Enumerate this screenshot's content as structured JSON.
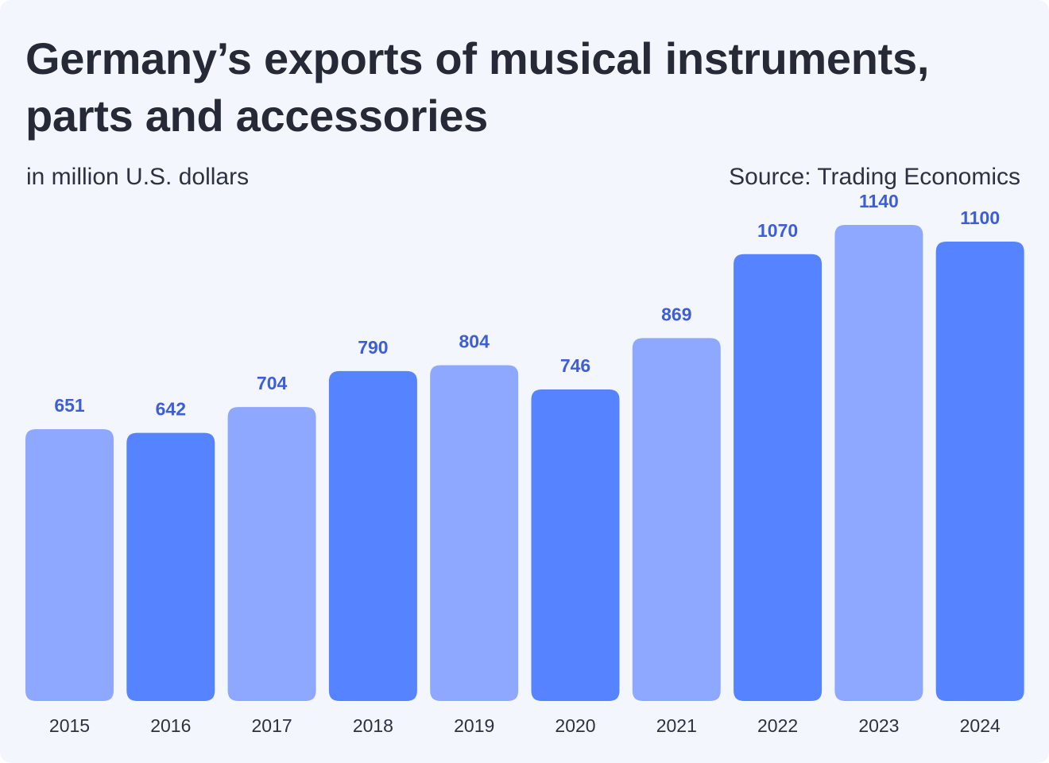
{
  "header": {
    "title": "Germany’s exports of musical instruments, parts and accessories",
    "subtitle": "in million U.S. dollars",
    "source": "Source: Trading Economics"
  },
  "colors": {
    "bar_light": "#8fa8ff",
    "bar_dark": "#5683ff",
    "value_label": "#3e5ed6",
    "tick_label": "#2d3140",
    "background": "#f3f6fd"
  },
  "chart_data": {
    "type": "bar",
    "title": "Germany’s exports of musical instruments, parts and accessories",
    "subtitle": "in million U.S. dollars",
    "xlabel": "",
    "ylabel": "",
    "categories": [
      "2015",
      "2016",
      "2017",
      "2018",
      "2019",
      "2020",
      "2021",
      "2022",
      "2023",
      "2024"
    ],
    "values": [
      651,
      642,
      704,
      790,
      804,
      746,
      869,
      1070,
      1140,
      1100
    ],
    "value_labels": [
      "651",
      "642",
      "704",
      "790",
      "804",
      "746",
      "869",
      "1070",
      "1140",
      "1100"
    ],
    "bar_shades": [
      "light",
      "dark",
      "light",
      "dark",
      "light",
      "dark",
      "light",
      "dark",
      "light",
      "dark"
    ],
    "ylim": [
      0,
      1140
    ],
    "grid": false,
    "legend": "none"
  }
}
